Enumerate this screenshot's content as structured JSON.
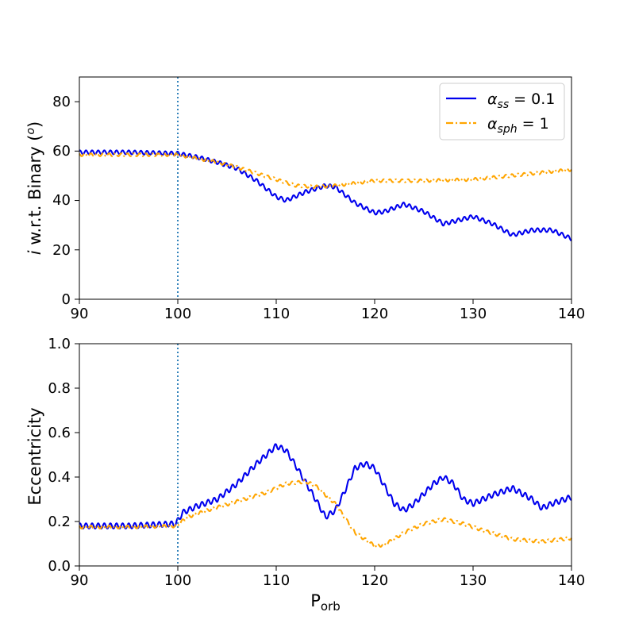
{
  "chart_data": [
    {
      "type": "line",
      "ylabel_prefix": "i",
      "ylabel": " w.r.t. Binary (",
      "ylabel_sup": "o",
      "ylabel_suffix": ")",
      "xlim": [
        90,
        140
      ],
      "ylim": [
        0,
        90
      ],
      "xticks": [
        "90",
        "100",
        "110",
        "120",
        "130",
        "140"
      ],
      "yticks": [
        "0",
        "20",
        "40",
        "60",
        "80"
      ],
      "vline_x": 100,
      "legend": {
        "location": "top-right",
        "entries": [
          {
            "symbol": "α",
            "subscript": "ss",
            "suffix": " = 0.1",
            "color": "#0000ee",
            "style": "solid"
          },
          {
            "symbol": "α",
            "subscript": "sph",
            "suffix": " = 1",
            "color": "#ffa500",
            "style": "dashdot"
          }
        ]
      },
      "series": [
        {
          "name": "alpha_ss = 0.1",
          "color": "#0000ee",
          "x": [
            90,
            95,
            100,
            102,
            104,
            106,
            108,
            110,
            111,
            113,
            115,
            116,
            118,
            120,
            121,
            123,
            125,
            127,
            129,
            130,
            132,
            134,
            136,
            138,
            140
          ],
          "y": [
            59.5,
            59.5,
            59.0,
            57.5,
            55.5,
            53.0,
            48.0,
            41.5,
            40.0,
            43.5,
            46.0,
            45.5,
            39.0,
            35.0,
            35.5,
            38.5,
            35.5,
            30.5,
            32.5,
            33.5,
            30.5,
            26.0,
            28.0,
            28.0,
            24.5
          ],
          "wiggle_amplitude": 0.8
        },
        {
          "name": "alpha_sph = 1",
          "color": "#ffa500",
          "x": [
            90,
            95,
            100,
            102,
            104,
            106,
            108,
            110,
            112,
            114,
            116,
            118,
            120,
            125,
            130,
            135,
            140
          ],
          "y": [
            58.5,
            58.5,
            58.5,
            57.0,
            55.5,
            53.5,
            51.0,
            48.5,
            46.0,
            45.5,
            46.0,
            47.0,
            48.0,
            48.0,
            48.5,
            50.5,
            52.5
          ],
          "wiggle_amplitude": 0.6
        }
      ]
    },
    {
      "type": "line",
      "xlabel_main": "P",
      "xlabel_sub": "orb",
      "ylabel": "Eccentricity",
      "xlim": [
        90,
        140
      ],
      "ylim": [
        0.0,
        1.0
      ],
      "xticks": [
        "90",
        "100",
        "110",
        "120",
        "130",
        "140"
      ],
      "yticks": [
        "0.0",
        "0.2",
        "0.4",
        "0.6",
        "0.8",
        "1.0"
      ],
      "vline_x": 100,
      "series": [
        {
          "name": "alpha_ss = 0.1",
          "color": "#0000ee",
          "x": [
            90,
            95,
            99.8,
            100.5,
            102,
            104,
            106,
            108,
            110,
            111,
            112,
            114,
            115,
            116,
            117,
            118,
            119,
            120,
            121,
            122,
            123,
            124,
            126,
            127,
            128,
            129,
            130,
            132,
            134,
            136,
            137,
            138,
            140
          ],
          "y": [
            0.18,
            0.18,
            0.19,
            0.24,
            0.27,
            0.3,
            0.37,
            0.46,
            0.54,
            0.52,
            0.45,
            0.3,
            0.22,
            0.25,
            0.34,
            0.44,
            0.46,
            0.44,
            0.36,
            0.28,
            0.25,
            0.28,
            0.37,
            0.4,
            0.37,
            0.3,
            0.28,
            0.32,
            0.35,
            0.3,
            0.26,
            0.28,
            0.31
          ],
          "wiggle_amplitude": 0.012
        },
        {
          "name": "alpha_sph = 1",
          "color": "#ffa500",
          "x": [
            90,
            95,
            99.8,
            101,
            103,
            106,
            109,
            111,
            113,
            114,
            116,
            118,
            120,
            121,
            123,
            125,
            127,
            129,
            131,
            134,
            137,
            140
          ],
          "y": [
            0.175,
            0.175,
            0.18,
            0.22,
            0.25,
            0.29,
            0.33,
            0.37,
            0.38,
            0.36,
            0.28,
            0.15,
            0.09,
            0.095,
            0.15,
            0.19,
            0.21,
            0.19,
            0.16,
            0.12,
            0.11,
            0.125
          ],
          "wiggle_amplitude": 0.007
        }
      ]
    }
  ]
}
